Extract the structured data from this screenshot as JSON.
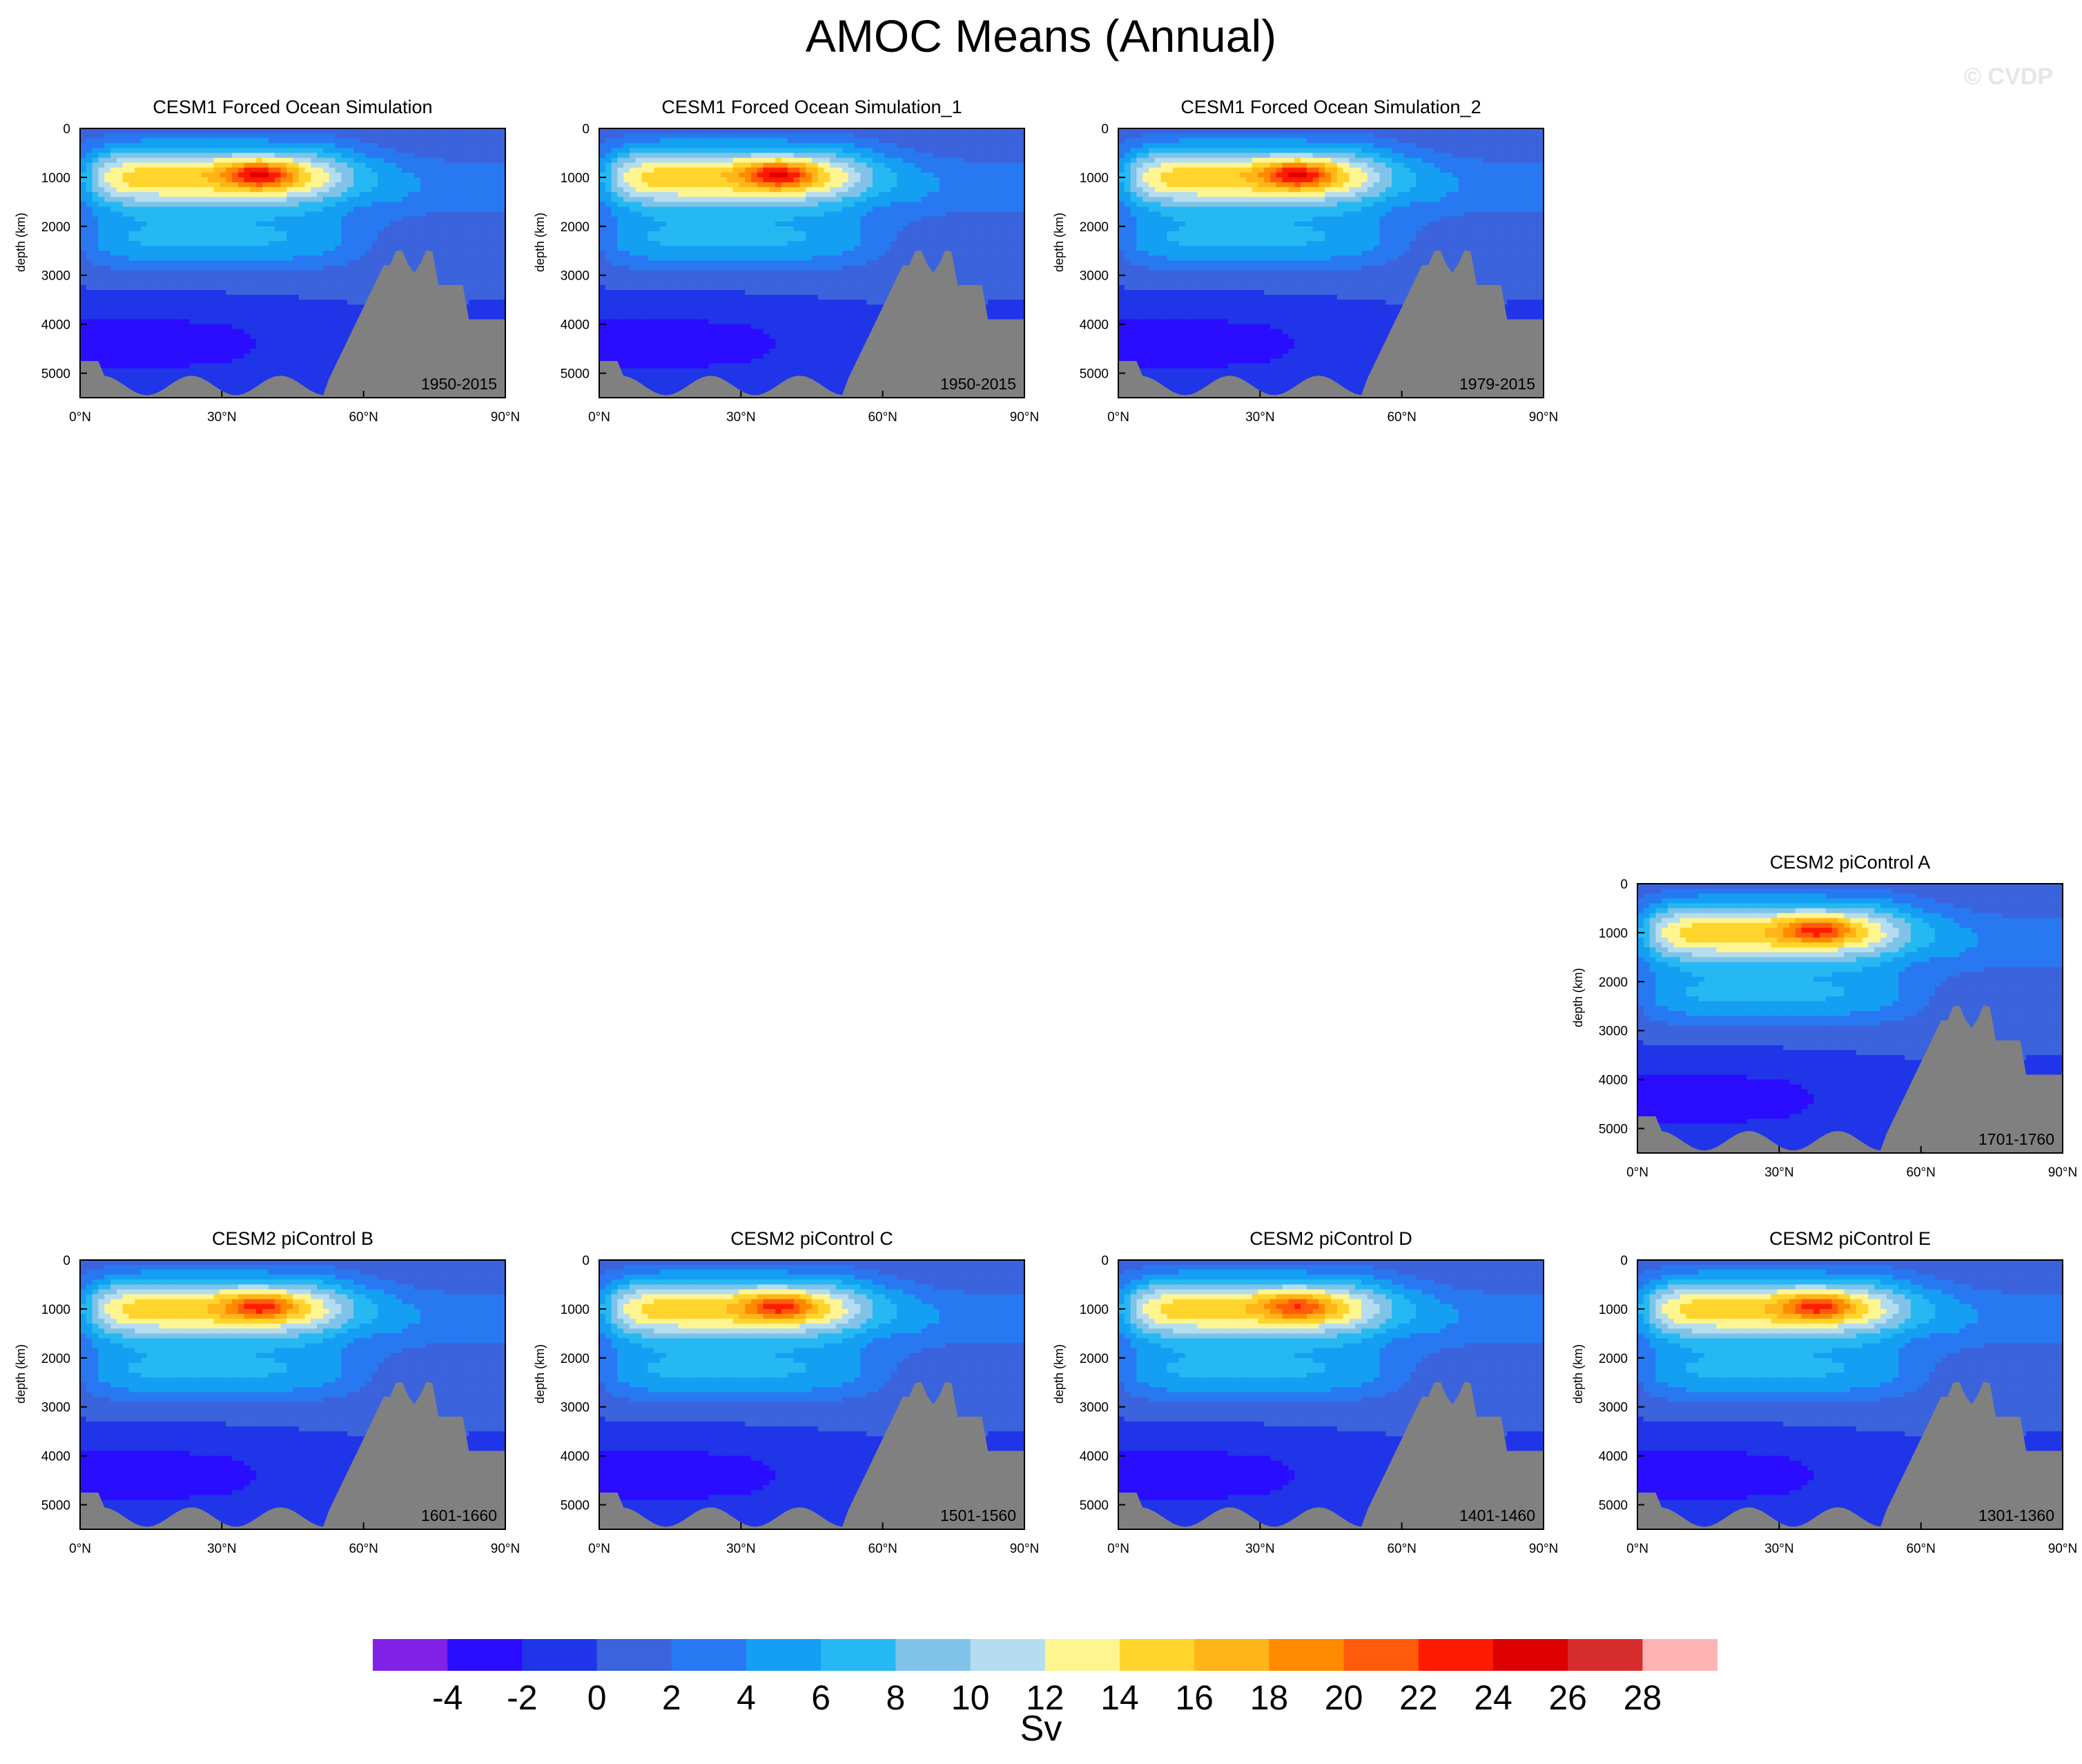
{
  "title": "AMOC Means (Annual)",
  "watermark": "© CVDP",
  "colorbar": {
    "units": "Sv",
    "levels": [
      -4,
      -2,
      0,
      2,
      4,
      6,
      8,
      10,
      12,
      14,
      16,
      18,
      20,
      22,
      24,
      26,
      28
    ],
    "colors": [
      "#8122e6",
      "#2a0cff",
      "#2034e8",
      "#3b63dc",
      "#2878f2",
      "#149ff2",
      "#25b8f2",
      "#80c3e8",
      "#b5dcef",
      "#fff590",
      "#ffd52d",
      "#ffb418",
      "#ff8a00",
      "#ff5b0a",
      "#ff1a00",
      "#dc0000",
      "#d72c2c",
      "#ffb4b4"
    ],
    "land_color": "#808080"
  },
  "axes": {
    "xticks": [
      "0°N",
      "30°N",
      "60°N",
      "90°N"
    ],
    "yticks": [
      "0",
      "1000",
      "2000",
      "3000",
      "4000",
      "5000"
    ],
    "ylabel": "depth (km)",
    "xlim": [
      0,
      90
    ],
    "ylim": [
      0,
      5500
    ]
  },
  "chart_data": [
    {
      "type": "heatmap",
      "title": "CESM1 Forced Ocean Simulation",
      "period": "1950-2015",
      "max_strength": 25
    },
    {
      "type": "heatmap",
      "title": "CESM1 Forced Ocean Simulation_1",
      "period": "1950-2015",
      "max_strength": 25
    },
    {
      "type": "heatmap",
      "title": "CESM1 Forced Ocean Simulation_2",
      "period": "1979-2015",
      "max_strength": 25
    },
    {
      "type": "heatmap",
      "title": "CESM2 piControl A",
      "period": "1701-1760",
      "max_strength": 23
    },
    {
      "type": "heatmap",
      "title": "CESM2 piControl B",
      "period": "1601-1660",
      "max_strength": 23
    },
    {
      "type": "heatmap",
      "title": "CESM2 piControl C",
      "period": "1501-1560",
      "max_strength": 23
    },
    {
      "type": "heatmap",
      "title": "CESM2 piControl D",
      "period": "1401-1460",
      "max_strength": 22
    },
    {
      "type": "heatmap",
      "title": "CESM2 piControl E",
      "period": "1301-1360",
      "max_strength": 23
    }
  ]
}
